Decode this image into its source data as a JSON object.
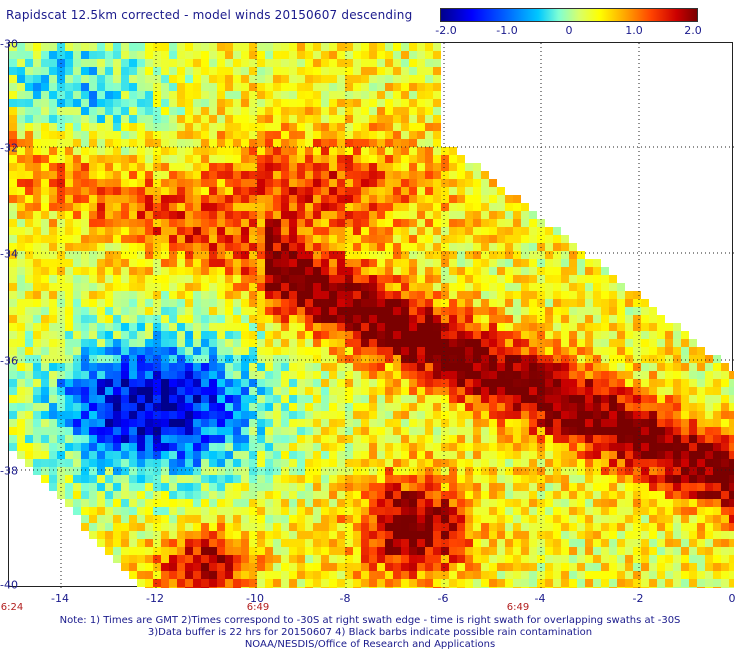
{
  "title": "Rapidscat 12.5km corrected - model winds 20150607 descending",
  "colorbar": {
    "labels": [
      "-2.0",
      "-1.0",
      "0",
      "1.0",
      "2.0"
    ],
    "stops": [
      "#00008c",
      "#0000ff",
      "#0060ff",
      "#00c8ff",
      "#7fffd4",
      "#d8ff6a",
      "#ffff00",
      "#ffa500",
      "#ff4400",
      "#cc0000",
      "#7a0000"
    ]
  },
  "axes": {
    "lat_labels": [
      "-30",
      "-32",
      "-34",
      "-36",
      "-38",
      "-40"
    ],
    "lon_labels": [
      "-14",
      "-12",
      "-10",
      "-8",
      "-6",
      "-4",
      "-2",
      "0"
    ],
    "time_labels": [
      "6:24",
      "6:49",
      "6:49"
    ]
  },
  "notes": [
    "Note: 1) Times are GMT 2)Times correspond to -30S at right swath edge - time is right swath for overlapping swaths at -30S",
    "3)Data buffer is 22 hrs for 20150607 4) Black barbs indicate possible rain contamination",
    "NOAA/NESDIS/Office of Research and Applications"
  ],
  "colors": {
    "text": "#1a1a8c",
    "time_text": "#b21e1e",
    "grid": "#222222"
  }
}
